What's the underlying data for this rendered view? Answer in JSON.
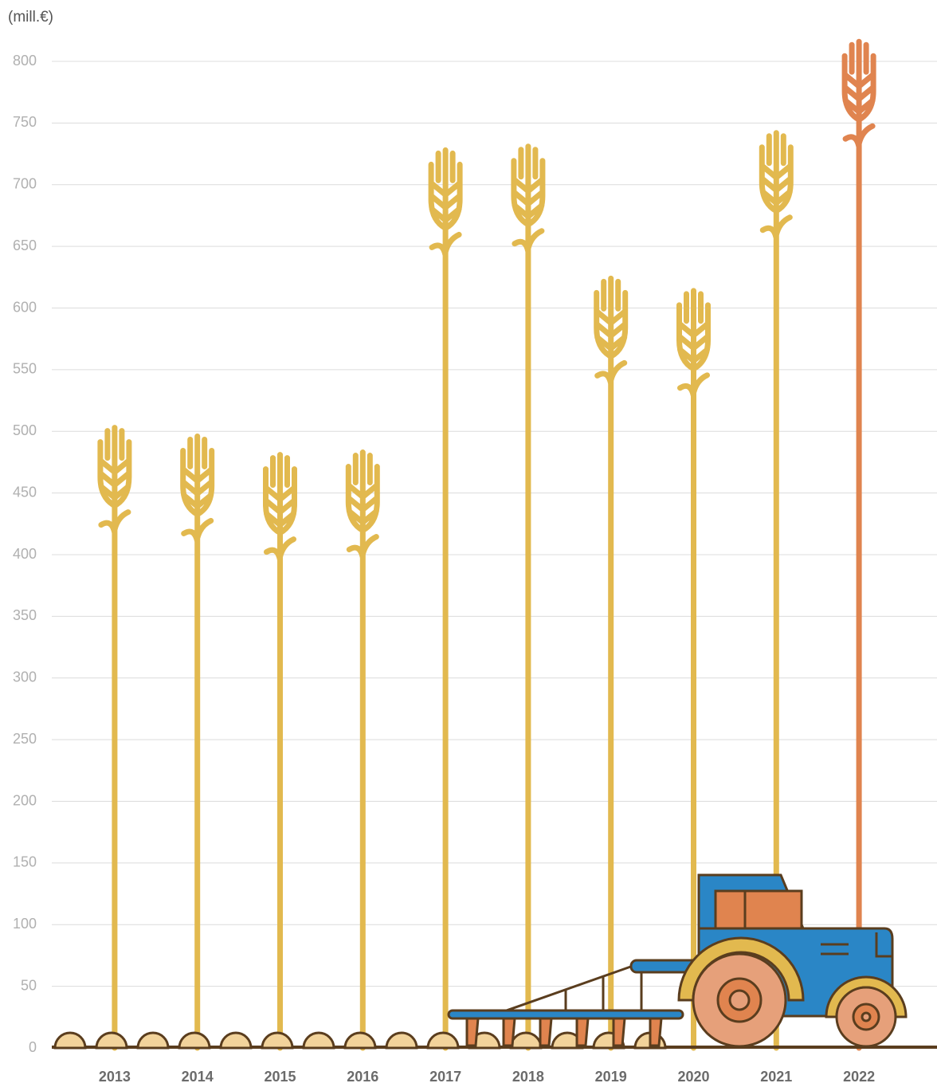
{
  "chart_data": {
    "type": "pictogram-bar",
    "y_label": "(mill.€)",
    "categories": [
      "2013",
      "2014",
      "2015",
      "2016",
      "2017",
      "2018",
      "2019",
      "2020",
      "2021",
      "2022"
    ],
    "values": [
      503,
      496,
      481,
      483,
      728,
      731,
      624,
      614,
      742,
      816
    ],
    "colors": [
      "#e2b94f",
      "#e2b94f",
      "#e2b94f",
      "#e2b94f",
      "#e2b94f",
      "#e2b94f",
      "#e2b94f",
      "#e2b94f",
      "#e2b94f",
      "#e0844f"
    ],
    "ylim": [
      0,
      800
    ],
    "yticks": [
      0,
      50,
      100,
      150,
      200,
      250,
      300,
      350,
      400,
      450,
      500,
      550,
      600,
      650,
      700,
      750,
      800
    ],
    "grid": true
  }
}
